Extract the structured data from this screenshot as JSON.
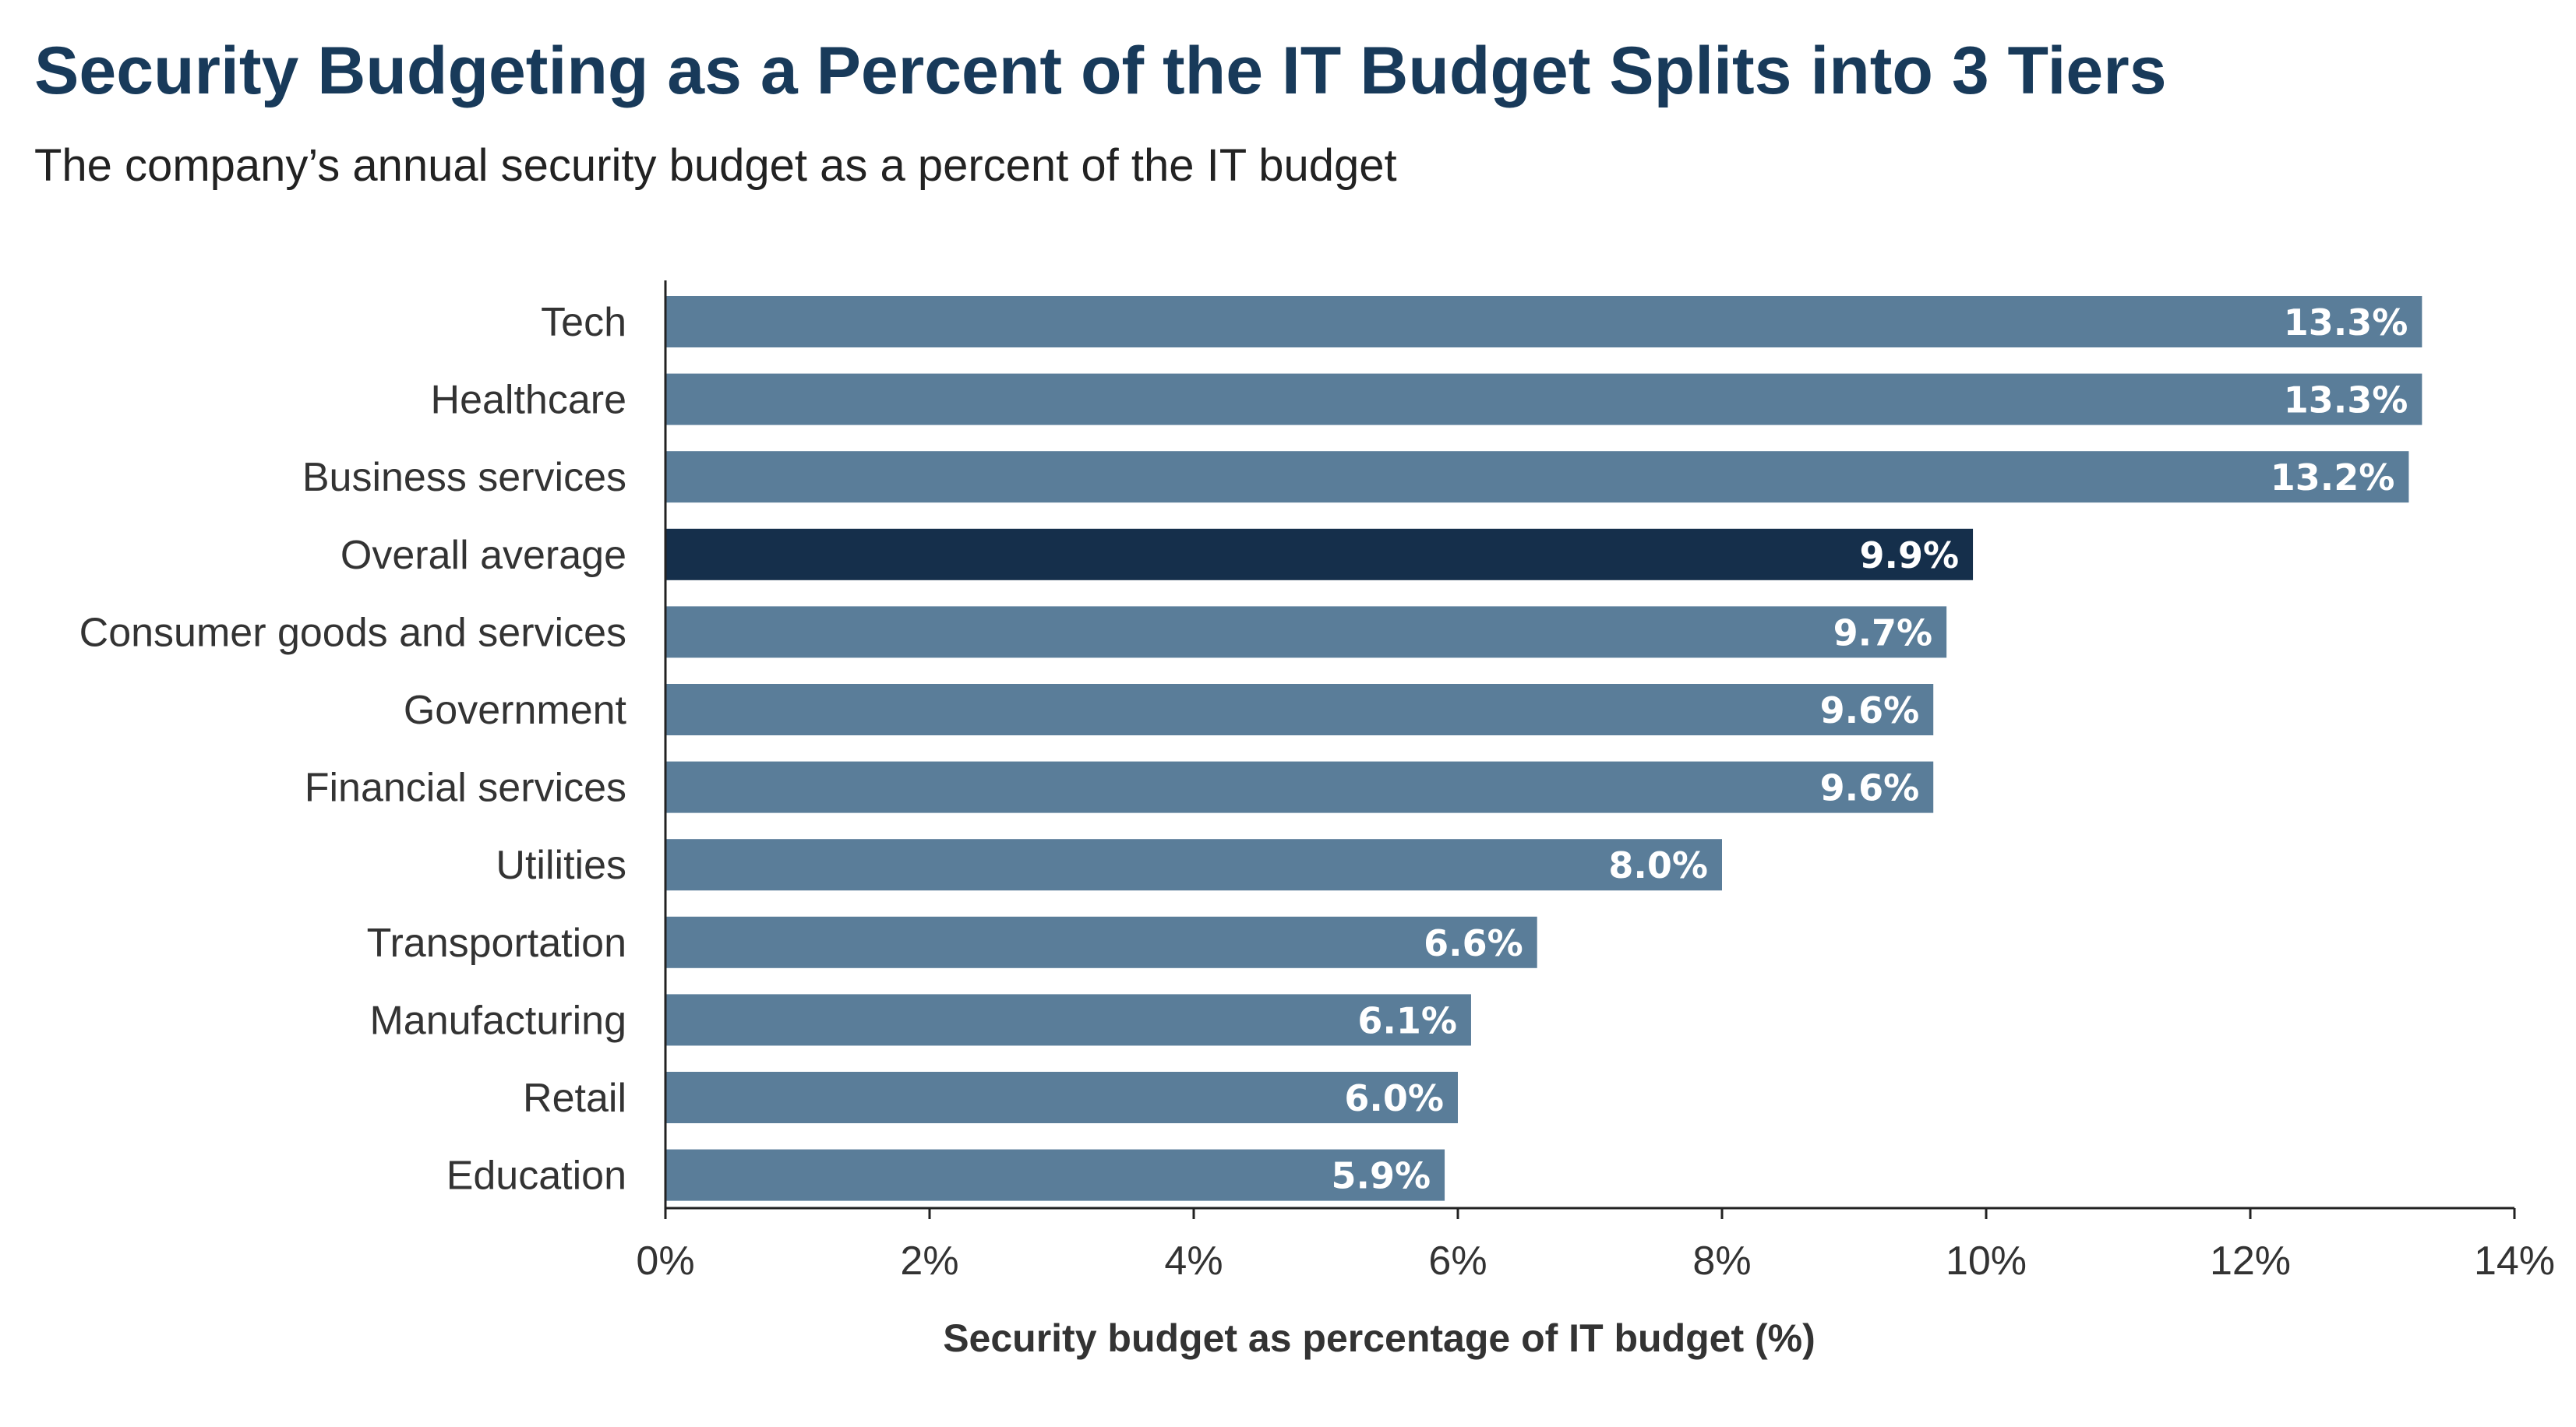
{
  "chart_data": {
    "type": "bar",
    "orientation": "horizontal",
    "title": "Security Budgeting as a Percent of the IT Budget Splits into 3 Tiers",
    "subtitle": "The company’s annual security budget as a percent of the IT budget",
    "xlabel": "Security budget as percentage of IT budget (%)",
    "ylabel": "",
    "xlim": [
      0,
      14
    ],
    "x_ticks": [
      "0%",
      "2%",
      "4%",
      "6%",
      "8%",
      "10%",
      "12%",
      "14%"
    ],
    "grid": false,
    "categories": [
      "Tech",
      "Healthcare",
      "Business services",
      "Overall average",
      "Consumer goods and services",
      "Government",
      "Financial services",
      "Utilities",
      "Transportation",
      "Manufacturing",
      "Retail",
      "Education"
    ],
    "values": [
      13.3,
      13.3,
      13.2,
      9.9,
      9.7,
      9.6,
      9.6,
      8.0,
      6.6,
      6.1,
      6.0,
      5.9
    ],
    "data_labels": [
      "13.3%",
      "13.3%",
      "13.2%",
      "9.9%",
      "9.7%",
      "9.6%",
      "9.6%",
      "8.0%",
      "6.6%",
      "6.1%",
      "6.0%",
      "5.9%"
    ],
    "highlight_category": "Overall average",
    "colors": {
      "bar": "#5a7d99",
      "highlight": "#152f4b",
      "title": "#183a5a"
    }
  }
}
